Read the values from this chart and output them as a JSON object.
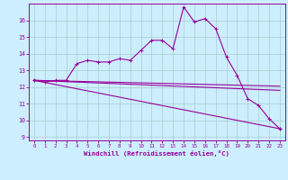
{
  "xlabel": "Windchill (Refroidissement éolien,°C)",
  "background_color": "#cceeff",
  "line_color": "#990099",
  "grid_color": "#aacccc",
  "xlim": [
    -0.5,
    23.5
  ],
  "ylim": [
    8.8,
    17.0
  ],
  "yticks": [
    9,
    10,
    11,
    12,
    13,
    14,
    15,
    16
  ],
  "xticks": [
    0,
    1,
    2,
    3,
    4,
    5,
    6,
    7,
    8,
    9,
    10,
    11,
    12,
    13,
    14,
    15,
    16,
    17,
    18,
    19,
    20,
    21,
    22,
    23
  ],
  "line1_x": [
    0,
    1,
    2,
    3,
    4,
    5,
    6,
    7,
    8,
    9,
    10,
    11,
    12,
    13,
    14,
    15,
    16,
    17,
    18,
    19,
    20,
    21,
    22,
    23
  ],
  "line1_y": [
    12.4,
    12.3,
    12.4,
    12.4,
    13.4,
    13.6,
    13.5,
    13.5,
    13.7,
    13.6,
    14.2,
    14.8,
    14.8,
    14.3,
    16.8,
    15.9,
    16.1,
    15.5,
    13.8,
    12.7,
    11.3,
    10.9,
    10.1,
    9.5
  ],
  "line2_x": [
    0,
    23
  ],
  "line2_y": [
    12.4,
    11.8
  ],
  "line3_x": [
    0,
    23
  ],
  "line3_y": [
    12.4,
    9.5
  ],
  "line4_x": [
    0,
    23
  ],
  "line4_y": [
    12.4,
    12.05
  ]
}
